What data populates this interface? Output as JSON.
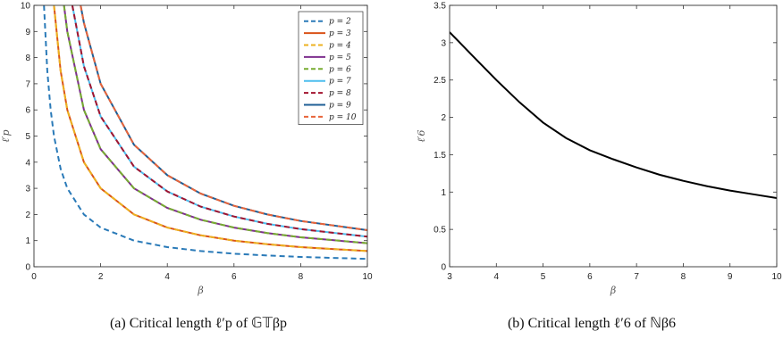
{
  "chart_data": [
    {
      "type": "line",
      "caption": "(a) Critical length ℓ′p of 𝔾𝕋βp",
      "xlabel": "β",
      "ylabel": "ℓ′p",
      "xlim": [
        0,
        10
      ],
      "ylim": [
        0,
        10
      ],
      "xticks": [
        "0",
        "2",
        "4",
        "6",
        "8",
        "10"
      ],
      "yticks": [
        "0",
        "1",
        "2",
        "3",
        "4",
        "5",
        "6",
        "7",
        "8",
        "9",
        "10"
      ],
      "legend_position": "top-right",
      "series": [
        {
          "name": "p = 2",
          "color": "#2a7ab8",
          "dash": true,
          "x": [
            0.3,
            0.4,
            0.5,
            0.6,
            0.8,
            1,
            1.5,
            2,
            3,
            4,
            5,
            6,
            7,
            8,
            10
          ],
          "y": [
            10.0,
            7.5,
            6.0,
            5.0,
            3.75,
            3.0,
            2.0,
            1.5,
            1.0,
            0.75,
            0.6,
            0.5,
            0.43,
            0.375,
            0.3
          ]
        },
        {
          "name": "p = 3",
          "color": "#d95319",
          "dash": false,
          "x": [
            0.6,
            0.8,
            1,
            1.5,
            2,
            3,
            4,
            5,
            6,
            7,
            8,
            10
          ],
          "y": [
            10.0,
            7.5,
            6.0,
            4.0,
            3.0,
            2.0,
            1.5,
            1.2,
            1.0,
            0.86,
            0.75,
            0.6
          ]
        },
        {
          "name": "p = 4",
          "color": "#edb120",
          "dash": true,
          "x": [
            0.6,
            0.8,
            1,
            1.5,
            2,
            3,
            4,
            5,
            6,
            7,
            8,
            10
          ],
          "y": [
            10.0,
            7.5,
            6.0,
            4.0,
            3.0,
            2.0,
            1.5,
            1.2,
            1.0,
            0.86,
            0.75,
            0.6
          ]
        },
        {
          "name": "p = 5",
          "color": "#7e2f8e",
          "dash": false,
          "x": [
            0.9,
            1,
            1.5,
            2,
            3,
            4,
            5,
            6,
            7,
            8,
            10
          ],
          "y": [
            10.0,
            9.0,
            6.0,
            4.5,
            3.0,
            2.25,
            1.8,
            1.5,
            1.29,
            1.125,
            0.9
          ]
        },
        {
          "name": "p = 6",
          "color": "#77ac30",
          "dash": true,
          "x": [
            0.9,
            1,
            1.5,
            2,
            3,
            4,
            5,
            6,
            7,
            8,
            10
          ],
          "y": [
            10.0,
            9.0,
            6.0,
            4.5,
            3.0,
            2.25,
            1.8,
            1.5,
            1.29,
            1.125,
            0.9
          ]
        },
        {
          "name": "p = 7",
          "color": "#4dbeee",
          "dash": false,
          "x": [
            1.15,
            1.5,
            2,
            3,
            4,
            5,
            6,
            7,
            8,
            10
          ],
          "y": [
            10.0,
            7.67,
            5.75,
            3.83,
            2.88,
            2.3,
            1.92,
            1.64,
            1.44,
            1.15
          ]
        },
        {
          "name": "p = 8",
          "color": "#a2142f",
          "dash": true,
          "x": [
            1.15,
            1.5,
            2,
            3,
            4,
            5,
            6,
            7,
            8,
            10
          ],
          "y": [
            10.0,
            7.67,
            5.75,
            3.83,
            2.88,
            2.3,
            1.92,
            1.64,
            1.44,
            1.15
          ]
        },
        {
          "name": "p = 9",
          "color": "#1f5f96",
          "dash": false,
          "x": [
            1.4,
            1.5,
            2,
            3,
            4,
            5,
            6,
            7,
            8,
            10
          ],
          "y": [
            10.0,
            9.33,
            7.0,
            4.67,
            3.5,
            2.8,
            2.33,
            2.0,
            1.75,
            1.4
          ]
        },
        {
          "name": "p = 10",
          "color": "#e8643a",
          "dash": true,
          "x": [
            1.4,
            1.5,
            2,
            3,
            4,
            5,
            6,
            7,
            8,
            10
          ],
          "y": [
            10.0,
            9.33,
            7.0,
            4.67,
            3.5,
            2.8,
            2.33,
            2.0,
            1.75,
            1.4
          ]
        }
      ]
    },
    {
      "type": "line",
      "caption": "(b) Critical length ℓ′6 of ℕβ6",
      "xlabel": "β",
      "ylabel": "ℓ′6",
      "xlim": [
        3,
        10
      ],
      "ylim": [
        0,
        3.5
      ],
      "xticks": [
        "3",
        "4",
        "5",
        "6",
        "7",
        "8",
        "9",
        "10"
      ],
      "yticks": [
        "0",
        "0.5",
        "1",
        "1.5",
        "2",
        "2.5",
        "3",
        "3.5"
      ],
      "series": [
        {
          "color": "#000000",
          "dash": false,
          "x": [
            3,
            3.5,
            4,
            4.5,
            5,
            5.5,
            6,
            6.5,
            7,
            7.5,
            8,
            8.5,
            9,
            9.5,
            10
          ],
          "y": [
            3.14,
            2.82,
            2.5,
            2.2,
            1.93,
            1.72,
            1.56,
            1.44,
            1.33,
            1.23,
            1.15,
            1.08,
            1.02,
            0.97,
            0.92
          ]
        }
      ]
    }
  ]
}
